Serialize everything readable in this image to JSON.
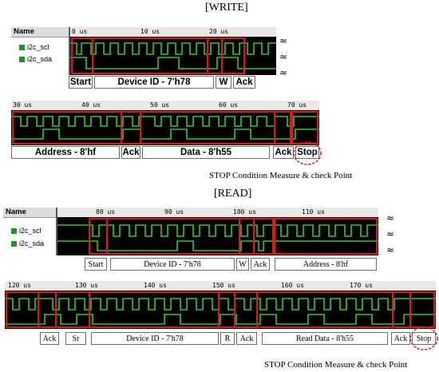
{
  "write": {
    "title": "[WRITE]",
    "name_header": "Name",
    "signals": [
      "i2c_scl",
      "i2c_sda"
    ],
    "ticks": [
      "0 us",
      "10 us",
      "20 us"
    ],
    "labels": [
      "Start",
      "Device ID - 7'h78",
      "W",
      "Ack"
    ],
    "row2_ticks": [
      "30 us",
      "40 us",
      "50 us",
      "60 us",
      "70 us"
    ],
    "row2_labels": [
      "Address - 8'hf",
      "Ack",
      "Data - 8'h55",
      "Ack",
      "Stop"
    ],
    "caption": "STOP Condition Measure & check Point"
  },
  "read": {
    "title": "[READ]",
    "name_header": "Name",
    "signals": [
      "i2c_scl",
      "i2c_sda"
    ],
    "ticks": [
      "80 us",
      "90 us",
      "100 us",
      "110 us"
    ],
    "labels": [
      "Start",
      "Device ID - 7'h78",
      "W",
      "Ack",
      "Address - 8'hf"
    ],
    "row2_ticks": [
      "120 us",
      "130 us",
      "140 us",
      "150 us",
      "160 us",
      "170 us"
    ],
    "row2_labels": [
      "Ack",
      "Sr",
      "Device ID - 7'h78",
      "R",
      "Ack",
      "Read Data - 8'h55",
      "Ack",
      "Stop"
    ],
    "caption": "STOP Condition Measure & check Point"
  },
  "colors": {
    "wave": "#35c435",
    "box": "#e01818",
    "panel": "#000000",
    "stop_circle": "#e01818"
  }
}
